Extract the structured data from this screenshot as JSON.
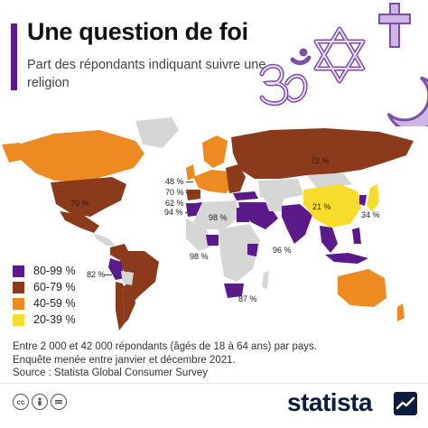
{
  "header": {
    "title": "Une question de foi",
    "subtitle": "Part des répondants indiquant suivre une religion"
  },
  "colors": {
    "accent": "#5b1a8a",
    "band_80_99": "#5b1a8a",
    "band_60_79": "#8b3b1c",
    "band_40_59": "#ee8a22",
    "band_20_39": "#f7dc2b",
    "no_data": "#d6d6d6"
  },
  "legend": [
    {
      "label": "80-99 %",
      "color": "#5b1a8a"
    },
    {
      "label": "60-79 %",
      "color": "#8b3b1c"
    },
    {
      "label": "40-59 %",
      "color": "#ee8a22"
    },
    {
      "label": "20-39 %",
      "color": "#f7dc2b"
    }
  ],
  "map_labels": {
    "russia": "72 %",
    "usa": "70 %",
    "uk": "48 %",
    "france": "70 %",
    "spain": "62 %",
    "morocco": "94 %",
    "egypt": "98 %",
    "china": "21 %",
    "japan": "34 %",
    "india": "96 %",
    "nigeria": "98 %",
    "peru": "82 %",
    "south_africa": "87 %"
  },
  "icons": [
    "om-icon",
    "star-of-david-icon",
    "cross-icon",
    "crescent-moon-icon"
  ],
  "notes": {
    "line1": "Entre 2 000 et 42 000 répondants (âgés de 18 à 64 ans) par pays.",
    "line2": "Enquête menée entre janvier et décembre 2021.",
    "line3": "Source : Statista Global Consumer Survey"
  },
  "footer": {
    "brand": "statista",
    "license_icons": [
      "cc-icon",
      "attribution-icon",
      "no-derivatives-icon"
    ]
  }
}
